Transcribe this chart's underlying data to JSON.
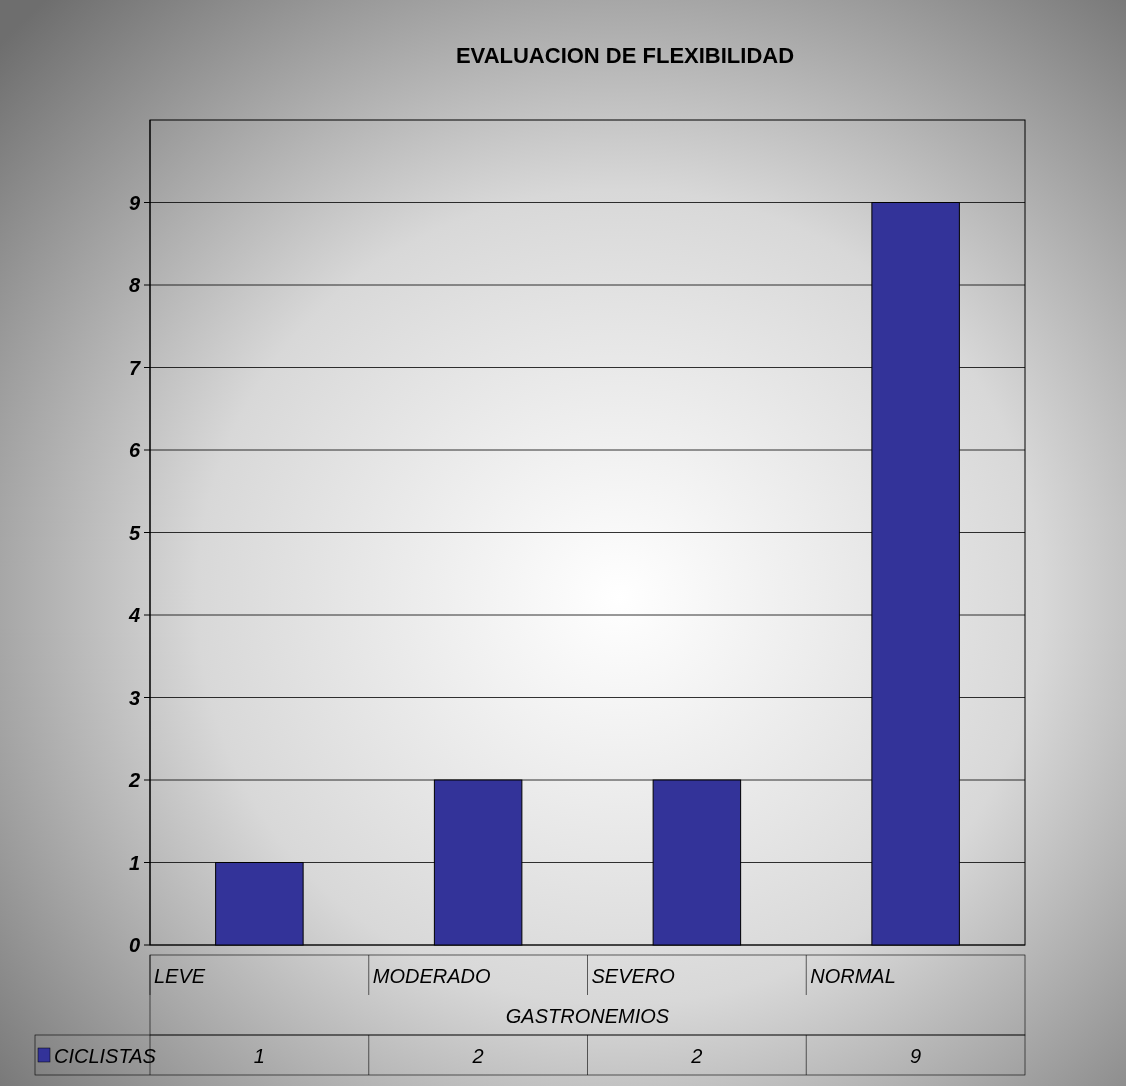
{
  "chart_data": {
    "type": "bar",
    "title": "EVALUACION DE FLEXIBILIDAD",
    "xlabel": "GASTRONEMIOS",
    "categories": [
      "LEVE",
      "MODERADO",
      "SEVERO",
      "NORMAL"
    ],
    "series": [
      {
        "name": "CICLISTAS",
        "color": "#333399",
        "values": [
          1,
          2,
          2,
          9
        ]
      }
    ],
    "ylim": [
      0,
      10
    ],
    "yticks": [
      0,
      1,
      2,
      3,
      4,
      5,
      6,
      7,
      8,
      9
    ],
    "grid": "y",
    "legend": "bottom",
    "data_labels": true
  }
}
